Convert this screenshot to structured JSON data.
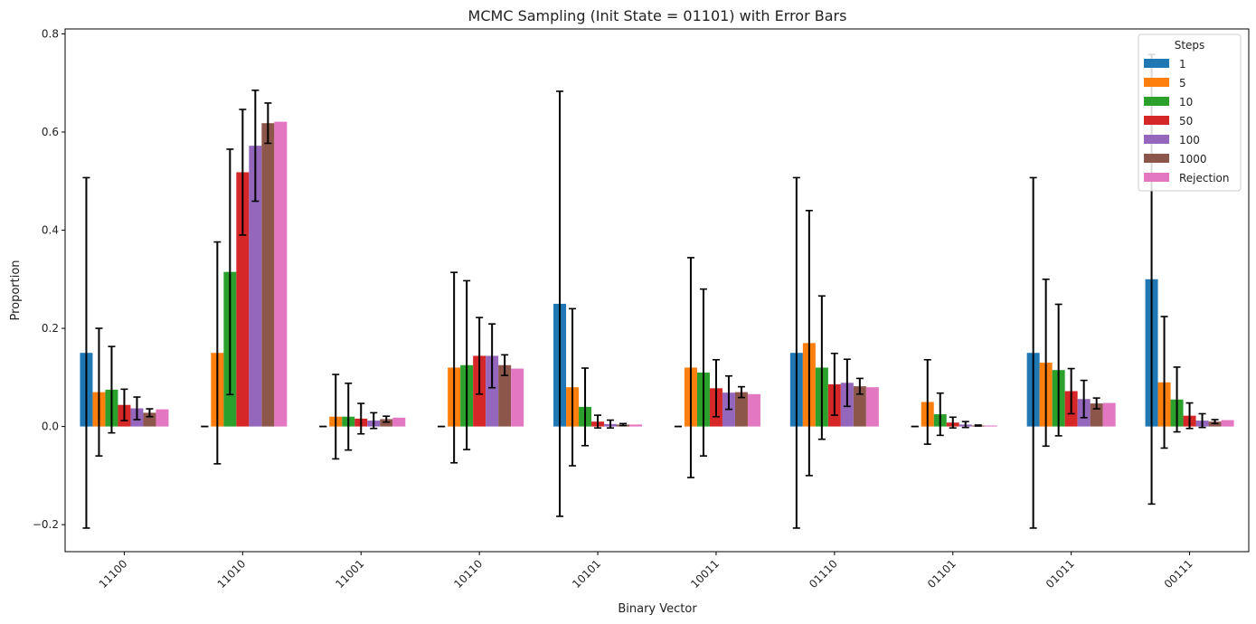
{
  "chart_data": {
    "type": "bar",
    "title": "MCMC Sampling (Init State = 01101) with Error Bars",
    "xlabel": "Binary Vector",
    "ylabel": "Proportion",
    "ylim": [
      -0.255,
      0.81
    ],
    "yticks": [
      -0.2,
      0.0,
      0.2,
      0.4,
      0.6,
      0.8
    ],
    "ytick_labels": [
      "−0.2",
      "0.0",
      "0.2",
      "0.4",
      "0.6",
      "0.8"
    ],
    "grid": false,
    "legend_title": "Steps",
    "legend_position": "top-right",
    "categories": [
      "11100",
      "11010",
      "11001",
      "10110",
      "10101",
      "10011",
      "01110",
      "01101",
      "01011",
      "00111"
    ],
    "series": [
      {
        "name": "1",
        "color": "#1f77b4",
        "values": [
          0.15,
          0.0,
          0.0,
          0.0,
          0.25,
          0.0,
          0.15,
          0.0,
          0.15,
          0.3
        ],
        "errors": [
          0.357,
          0.0,
          0.0,
          0.0,
          0.433,
          0.0,
          0.357,
          0.0,
          0.357,
          0.458
        ]
      },
      {
        "name": "5",
        "color": "#ff7f0e",
        "values": [
          0.07,
          0.15,
          0.02,
          0.12,
          0.08,
          0.12,
          0.17,
          0.05,
          0.13,
          0.09
        ],
        "errors": [
          0.13,
          0.226,
          0.086,
          0.194,
          0.16,
          0.224,
          0.27,
          0.086,
          0.17,
          0.134
        ]
      },
      {
        "name": "10",
        "color": "#2ca02c",
        "values": [
          0.075,
          0.315,
          0.02,
          0.125,
          0.04,
          0.11,
          0.12,
          0.025,
          0.115,
          0.055
        ],
        "errors": [
          0.088,
          0.25,
          0.068,
          0.172,
          0.079,
          0.17,
          0.146,
          0.043,
          0.134,
          0.066
        ]
      },
      {
        "name": "50",
        "color": "#d62728",
        "values": [
          0.044,
          0.518,
          0.016,
          0.144,
          0.01,
          0.078,
          0.086,
          0.008,
          0.072,
          0.022
        ],
        "errors": [
          0.032,
          0.128,
          0.031,
          0.078,
          0.013,
          0.058,
          0.063,
          0.011,
          0.046,
          0.026
        ]
      },
      {
        "name": "100",
        "color": "#9467bd",
        "values": [
          0.037,
          0.572,
          0.012,
          0.144,
          0.005,
          0.069,
          0.089,
          0.004,
          0.056,
          0.012
        ],
        "errors": [
          0.023,
          0.113,
          0.016,
          0.065,
          0.008,
          0.034,
          0.048,
          0.006,
          0.038,
          0.014
        ]
      },
      {
        "name": "1000",
        "color": "#8c564b",
        "values": [
          0.028,
          0.618,
          0.015,
          0.125,
          0.004,
          0.07,
          0.082,
          0.002,
          0.047,
          0.01
        ],
        "errors": [
          0.008,
          0.041,
          0.006,
          0.021,
          0.002,
          0.011,
          0.016,
          0.001,
          0.011,
          0.004
        ]
      },
      {
        "name": "Rejection",
        "color": "#e377c2",
        "values": [
          0.035,
          0.621,
          0.018,
          0.118,
          0.004,
          0.066,
          0.08,
          0.002,
          0.048,
          0.013
        ],
        "errors": [
          0,
          0,
          0,
          0,
          0,
          0,
          0,
          0,
          0,
          0
        ]
      }
    ]
  }
}
